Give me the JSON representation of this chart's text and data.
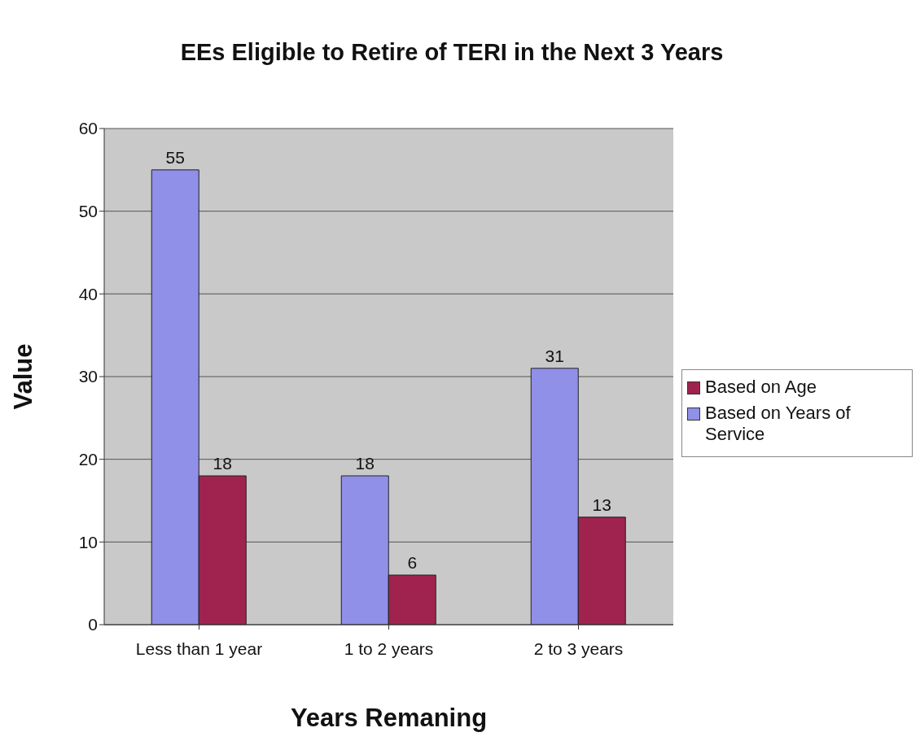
{
  "chart_data": {
    "type": "bar",
    "title": "EEs Eligible to Retire of TERI in the Next 3 Years",
    "xlabel": "Years Remaning",
    "ylabel": "Value",
    "categories": [
      "Less than 1 year",
      "1 to 2 years",
      "2 to 3 years"
    ],
    "series": [
      {
        "name": "Based on Years of Service",
        "color": "#9090e8",
        "values": [
          55,
          18,
          31
        ]
      },
      {
        "name": "Based on Age",
        "color": "#a0234f",
        "values": [
          18,
          6,
          13
        ]
      }
    ],
    "ylim": [
      0,
      60
    ],
    "yticks": [
      0,
      10,
      20,
      30,
      40,
      50,
      60
    ],
    "grid": "y",
    "legend": "right",
    "data_labels": true
  }
}
